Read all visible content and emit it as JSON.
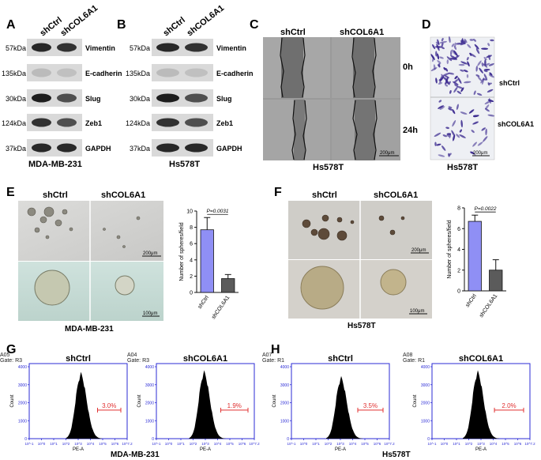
{
  "panels": {
    "A": {
      "letter": "A",
      "columns": [
        "shCtrl",
        "shCOL6A1"
      ],
      "rows": [
        {
          "kda": "57kDa",
          "protein": "Vimentin"
        },
        {
          "kda": "135kDa",
          "protein": "E-cadherin"
        },
        {
          "kda": "30kDa",
          "protein": "Slug"
        },
        {
          "kda": "124kDa",
          "protein": "Zeb1"
        },
        {
          "kda": "37kDa",
          "protein": "GAPDH"
        }
      ],
      "cell_line": "MDA-MB-231"
    },
    "B": {
      "letter": "B",
      "columns": [
        "shCtrl",
        "shCOL6A1"
      ],
      "rows": [
        {
          "kda": "57kDa",
          "protein": "Vimentin"
        },
        {
          "kda": "135kDa",
          "protein": "E-cadherin"
        },
        {
          "kda": "30kDa",
          "protein": "Slug"
        },
        {
          "kda": "124kDa",
          "protein": "Zeb1"
        },
        {
          "kda": "37kDa",
          "protein": "GAPDH"
        }
      ],
      "cell_line": "Hs578T"
    },
    "C": {
      "letter": "C",
      "columns": [
        "shCtrl",
        "shCOL6A1"
      ],
      "times": [
        "0h",
        "24h"
      ],
      "scale": "200μm",
      "cell_line": "Hs578T"
    },
    "D": {
      "letter": "D",
      "rows": [
        "shCtrl",
        "shCOL6A1"
      ],
      "scale": "200μm",
      "cell_line": "Hs578T"
    },
    "E": {
      "letter": "E",
      "columns": [
        "shCtrl",
        "shCOL6A1"
      ],
      "scale_top": "200μm",
      "scale_bottom": "100μm",
      "cell_line": "MDA-MB-231"
    },
    "F": {
      "letter": "F",
      "columns": [
        "shCtrl",
        "shCOL6A1"
      ],
      "scale_top": "200μm",
      "scale_bottom": "100μm",
      "cell_line": "Hs578T"
    },
    "G": {
      "letter": "G",
      "cell_line": "MDA-MB-231",
      "plots": [
        {
          "id": "A05",
          "gate": "Gate: R3",
          "title": "shCtrl",
          "pct": "3.0%"
        },
        {
          "id": "A04",
          "gate": "Gate: R3",
          "title": "shCOL6A1",
          "pct": "1.9%"
        }
      ]
    },
    "H": {
      "letter": "H",
      "cell_line": "Hs578T",
      "plots": [
        {
          "id": "A07",
          "gate": "Gate: R1",
          "title": "shCtrl",
          "pct": "3.5%"
        },
        {
          "id": "A08",
          "gate": "Gate: R1",
          "title": "shCOL6A1",
          "pct": "2.0%"
        }
      ]
    }
  },
  "flow_axis": {
    "xlabel": "PE-A",
    "ylabel": "Count",
    "yticks": [
      "0",
      "1000",
      "2000",
      "3000",
      "4000"
    ],
    "xticks": [
      "10^-1",
      "10^0",
      "10^1",
      "10^2",
      "10^3",
      "10^4",
      "10^5",
      "10^6",
      "10^7.2"
    ]
  },
  "chart_data": [
    {
      "type": "bar",
      "panel": "E",
      "categories": [
        "shCtrl",
        "shCOL6A1"
      ],
      "values": [
        7.7,
        1.7
      ],
      "errors": [
        1.5,
        0.5
      ],
      "ylabel": "Number of spheres/field",
      "ylim": [
        0,
        10
      ],
      "yticks": [
        0,
        2,
        4,
        6,
        8,
        10
      ],
      "annotation": "P=0.0031",
      "colors": [
        "#8f8ff5",
        "#5b5b5b"
      ]
    },
    {
      "type": "bar",
      "panel": "F",
      "categories": [
        "shCtrl",
        "shCOL6A1"
      ],
      "values": [
        6.7,
        2.0
      ],
      "errors": [
        0.6,
        1.0
      ],
      "ylabel": "Number of spheres/field",
      "ylim": [
        0,
        8
      ],
      "yticks": [
        0,
        2,
        4,
        6,
        8
      ],
      "annotation": "P=0.0022",
      "colors": [
        "#8f8ff5",
        "#5b5b5b"
      ]
    }
  ]
}
